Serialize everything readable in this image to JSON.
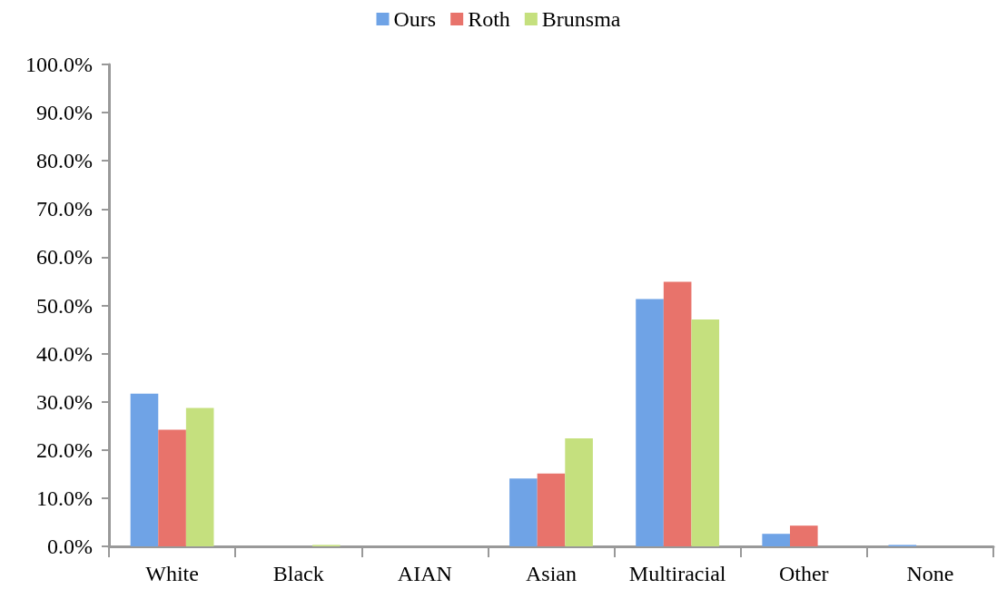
{
  "chart_data": {
    "type": "bar",
    "categories": [
      "White",
      "Black",
      "AIAN",
      "Asian",
      "Multiracial",
      "Other",
      "None"
    ],
    "series": [
      {
        "name": "Ours",
        "color": "#6fa3e6",
        "values": [
          31.7,
          0,
          0,
          14.1,
          51.3,
          2.6,
          0.3
        ]
      },
      {
        "name": "Roth",
        "color": "#e8736b",
        "values": [
          24.2,
          0,
          0,
          15.1,
          54.9,
          4.3,
          0
        ]
      },
      {
        "name": "Brunsma",
        "color": "#c5e07e",
        "values": [
          28.7,
          0.3,
          0,
          22.4,
          47.1,
          0,
          0
        ]
      }
    ],
    "ylim": [
      0,
      100
    ],
    "yticks": [
      {
        "value": 0,
        "label": "0.0%"
      },
      {
        "value": 10,
        "label": "10.0%"
      },
      {
        "value": 20,
        "label": "20.0%"
      },
      {
        "value": 30,
        "label": "30.0%"
      },
      {
        "value": 40,
        "label": "40.0%"
      },
      {
        "value": 50,
        "label": "50.0%"
      },
      {
        "value": 60,
        "label": "60.0%"
      },
      {
        "value": 70,
        "label": "70.0%"
      },
      {
        "value": 80,
        "label": "80.0%"
      },
      {
        "value": 90,
        "label": "90.0%"
      },
      {
        "value": 100,
        "label": "100.0%"
      }
    ],
    "grid": false,
    "legend": "top"
  }
}
